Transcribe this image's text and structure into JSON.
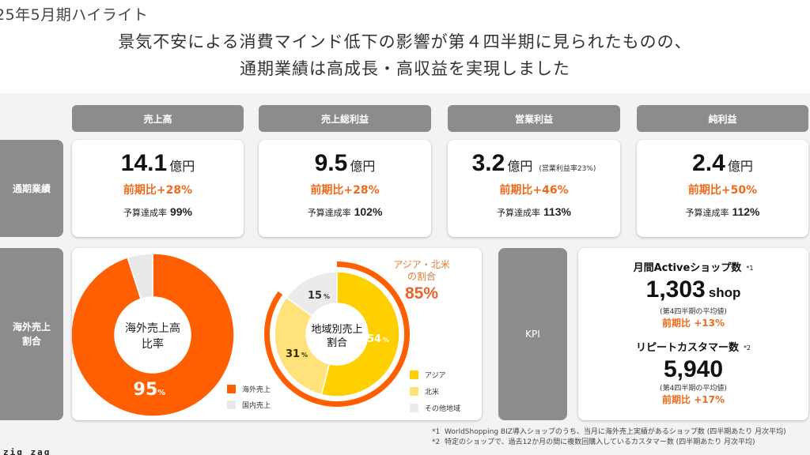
{
  "page": {
    "title": "25年5月期ハイライト",
    "headline_line1": "景気不安による消費マインド低下の影響が第４四半期に見られたものの、",
    "headline_line2": "通期業績は高成長・高収益を実現しました",
    "brand": "zig zag"
  },
  "row_labels": {
    "annual": "通期業績",
    "overseas_line1": "海外売上",
    "overseas_line2": "割合",
    "kpi": "KPI"
  },
  "metrics": [
    {
      "header": "売上高",
      "value": "14.1",
      "unit": "億円",
      "note": "",
      "yoy": "前期比+28%",
      "budget_label": "予算達成率",
      "budget_value": "99%"
    },
    {
      "header": "売上総利益",
      "value": "9.5",
      "unit": "億円",
      "note": "",
      "yoy": "前期比+28%",
      "budget_label": "予算達成率",
      "budget_value": "102%"
    },
    {
      "header": "営業利益",
      "value": "3.2",
      "unit": "億円",
      "note": "(営業利益率23%)",
      "yoy": "前期比+46%",
      "budget_label": "予算達成率",
      "budget_value": "113%"
    },
    {
      "header": "純利益",
      "value": "2.4",
      "unit": "億円",
      "note": "",
      "yoy": "前期比+50%",
      "budget_label": "予算達成率",
      "budget_value": "112%"
    }
  ],
  "chart_data": [
    {
      "type": "pie",
      "title_line1": "海外売上高",
      "title_line2": "比率",
      "categories": [
        "海外売上",
        "国内売上"
      ],
      "values": [
        95,
        5
      ],
      "colors": [
        "#ff5f00",
        "#e8e8e8"
      ],
      "data_labels": [
        {
          "value": "95",
          "suffix": "%"
        }
      ],
      "legend": "bottom-right"
    },
    {
      "type": "pie",
      "title_line1": "地域別売上",
      "title_line2": "割合",
      "categories": [
        "アジア",
        "北米",
        "その他地域"
      ],
      "values": [
        54,
        31,
        15
      ],
      "colors": [
        "#ffd000",
        "#ffe27a",
        "#ebebeb"
      ],
      "data_labels": [
        {
          "value": "54",
          "suffix": "%"
        },
        {
          "value": "31",
          "suffix": "%"
        },
        {
          "value": "15",
          "suffix": "%"
        }
      ],
      "highlight": {
        "label_line1": "アジア・北米",
        "label_line2": "の割合",
        "value": "85%",
        "share": 85,
        "color": "#ff5f00"
      },
      "legend": "bottom-right"
    }
  ],
  "kpi": {
    "items": [
      {
        "title": "月間Activeショップ数",
        "mark": "*1",
        "value": "1,303",
        "unit": "shop",
        "sub": "(第4四半期の平均値)",
        "yoy": "前期比 +13%"
      },
      {
        "title": "リピートカスタマー数",
        "mark": "*2",
        "value": "5,940",
        "unit": "",
        "sub": "(第4四半期の平均値)",
        "yoy": "前期比 +17%"
      }
    ]
  },
  "footnotes": [
    {
      "mark": "*1",
      "text": "WorldShopping BIZ導入ショップのうち、当月に海外売上実績があるショップ数 (四半期あたり 月次平均)"
    },
    {
      "mark": "*2",
      "text": "特定のショップで、過去12か月の間に複数回購入しているカスタマー数 (四半期あたり 月次平均)"
    }
  ],
  "colors": {
    "accent": "#ee6a1c",
    "header_gray": "#8c8c8c",
    "background": "#f3f3f3"
  }
}
